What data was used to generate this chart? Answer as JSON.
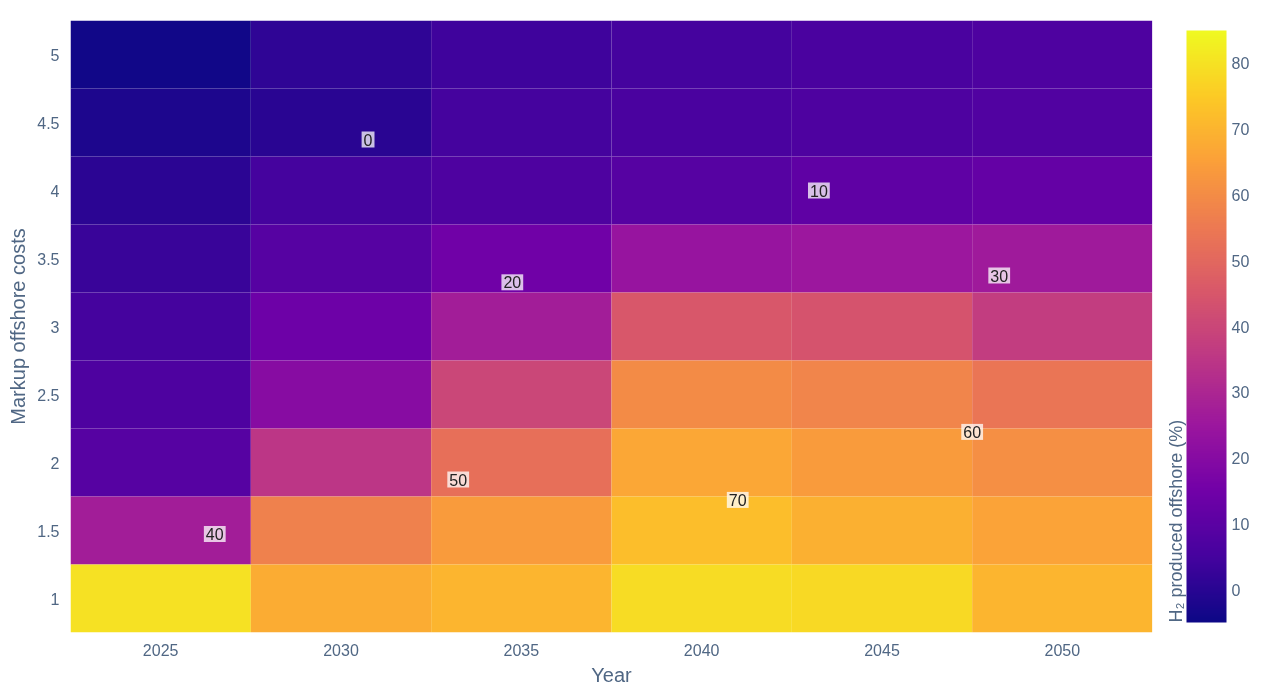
{
  "chart_data": {
    "type": "heatmap",
    "xlabel": "Year",
    "ylabel": "Markup offshore costs",
    "clabel": "H₂ produced offshore (%)",
    "categories": [
      "2025",
      "2030",
      "2035",
      "2040",
      "2045",
      "2050"
    ],
    "y_categories": [
      "5",
      "4.5",
      "4",
      "3.5",
      "3",
      "2.5",
      "2",
      "1.5",
      "1"
    ],
    "cells": [
      [
        -4,
        1,
        4,
        5,
        6,
        7
      ],
      [
        -2,
        0,
        5,
        6,
        7,
        8
      ],
      [
        0.5,
        5,
        7,
        9,
        11,
        12
      ],
      [
        3,
        9,
        15,
        24,
        25,
        26
      ],
      [
        5,
        14,
        27,
        45,
        44,
        37
      ],
      [
        7,
        20,
        40,
        60,
        58,
        54
      ],
      [
        9,
        35,
        52,
        67,
        64,
        61
      ],
      [
        27,
        57,
        64,
        72,
        69,
        66
      ],
      [
        80,
        68,
        70,
        79,
        78,
        70
      ]
    ],
    "clim": [
      -5,
      85
    ],
    "cticks": [
      0,
      10,
      20,
      30,
      40,
      50,
      60,
      70,
      80
    ],
    "colors": [
      "#0d0887",
      "#46039f",
      "#7201a8",
      "#9c179e",
      "#bd3786",
      "#d8576b",
      "#ed7953",
      "#fb9f3a",
      "#fdca26",
      "#f0f921"
    ],
    "annotations": [
      "0",
      "10",
      "20",
      "30",
      "40",
      "50",
      "60",
      "70"
    ]
  }
}
